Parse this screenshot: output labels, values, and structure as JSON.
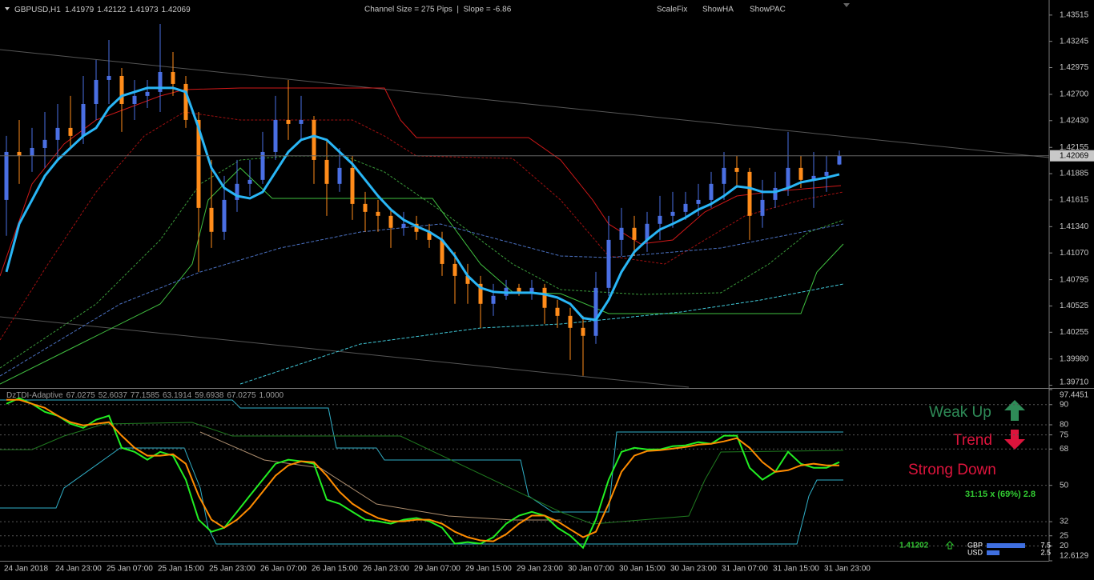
{
  "chart_data": [
    {
      "type": "candlestick",
      "title": "GBPUSD,H1",
      "last_bar": [
        1.41979,
        1.42122,
        1.41973,
        1.42069
      ],
      "annotation": "Channel Size = 275 Pips  |  Slope = -6.86",
      "buttons": [
        "ScaleFix",
        "ShowHA",
        "ShowPAC"
      ],
      "price_tag": 1.42069,
      "up_color": "#4a6fe3",
      "down_color": "#ff8c1a",
      "categories": [
        "24 Jan 2018",
        null,
        null,
        null,
        "24 Jan 23:00",
        null,
        null,
        null,
        "25 Jan 07:00",
        null,
        null,
        null,
        "25 Jan 15:00",
        null,
        null,
        null,
        "25 Jan 23:00",
        null,
        null,
        null,
        "26 Jan 07:00",
        null,
        null,
        null,
        "26 Jan 15:00",
        null,
        null,
        null,
        "26 Jan 23:00",
        null,
        null,
        null,
        "29 Jan 07:00",
        null,
        null,
        null,
        "29 Jan 15:00",
        null,
        null,
        null,
        "29 Jan 23:00",
        null,
        null,
        null,
        "30 Jan 07:00",
        null,
        null,
        null,
        "30 Jan 15:00",
        null,
        null,
        null,
        "30 Jan 23:00",
        null,
        null,
        null,
        "31 Jan 07:00",
        null,
        null,
        null,
        "31 Jan 15:00",
        null,
        null,
        null,
        "31 Jan 23:00",
        null
      ],
      "open": [
        1.41615,
        1.42108,
        1.42067,
        1.42149,
        1.42232,
        1.42355,
        1.42273,
        1.42601,
        1.42848,
        1.42889,
        1.42601,
        1.42684,
        1.42725,
        1.4293,
        1.42807,
        1.42437,
        1.41533,
        1.41287,
        1.41615,
        1.4178,
        1.41821,
        1.42108,
        1.42437,
        1.42396,
        1.42437,
        1.42026,
        1.4178,
        1.41944,
        1.41574,
        1.41492,
        1.41451,
        1.41328,
        1.41369,
        1.41287,
        1.41204,
        1.40957,
        1.40834,
        1.40752,
        1.40547,
        1.40629,
        1.40711,
        1.4067,
        1.40711,
        1.40506,
        1.40423,
        1.403,
        1.40218,
        1.40711,
        1.41204,
        1.41328,
        1.41204,
        1.41369,
        1.41451,
        1.41492,
        1.41574,
        1.41615,
        1.4178,
        1.41944,
        1.41903,
        1.41451,
        1.41615,
        1.41738,
        1.41944,
        1.41821,
        1.41862,
        1.41979
      ],
      "high": [
        1.42273,
        1.42437,
        1.42355,
        1.42519,
        1.42601,
        1.42684,
        1.42889,
        1.43053,
        1.43259,
        1.42971,
        1.42848,
        1.42848,
        1.43423,
        1.43136,
        1.42889,
        1.42519,
        1.42026,
        1.41862,
        1.42026,
        1.42026,
        1.42314,
        1.42684,
        1.42848,
        1.42684,
        1.42478,
        1.42232,
        1.42149,
        1.42067,
        1.41697,
        1.41615,
        1.41533,
        1.41492,
        1.41451,
        1.41369,
        1.41287,
        1.41081,
        1.40957,
        1.40834,
        1.40752,
        1.40793,
        1.40752,
        1.40793,
        1.40752,
        1.40588,
        1.40506,
        1.40423,
        1.40875,
        1.41451,
        1.41533,
        1.41451,
        1.41492,
        1.41656,
        1.41697,
        1.41697,
        1.4178,
        1.41903,
        1.42108,
        1.42067,
        1.41944,
        1.41821,
        1.41903,
        1.42314,
        1.42067,
        1.42108,
        1.42067,
        1.42122
      ],
      "low": [
        1.41246,
        1.4178,
        1.41903,
        1.41944,
        1.42026,
        1.42149,
        1.4219,
        1.42437,
        1.42601,
        1.42314,
        1.42437,
        1.4256,
        1.42519,
        1.42684,
        1.42355,
        1.40875,
        1.41122,
        1.41204,
        1.41492,
        1.41656,
        1.4178,
        1.42026,
        1.42232,
        1.42232,
        1.4178,
        1.41451,
        1.41697,
        1.4141,
        1.41287,
        1.41287,
        1.41122,
        1.41246,
        1.41204,
        1.41122,
        1.40834,
        1.40547,
        1.40547,
        1.403,
        1.40423,
        1.40588,
        1.40629,
        1.40588,
        1.40341,
        1.403,
        1.39971,
        1.39807,
        1.40135,
        1.40629,
        1.4104,
        1.4104,
        1.41081,
        1.41204,
        1.41328,
        1.4141,
        1.41451,
        1.41533,
        1.41615,
        1.41738,
        1.41204,
        1.41328,
        1.41533,
        1.41656,
        1.41738,
        1.41533,
        1.41697,
        1.41973
      ],
      "close": [
        1.42108,
        1.42067,
        1.42149,
        1.42232,
        1.42355,
        1.42273,
        1.42601,
        1.42848,
        1.42889,
        1.42601,
        1.42684,
        1.42725,
        1.4293,
        1.42807,
        1.42437,
        1.41533,
        1.41287,
        1.41615,
        1.4178,
        1.41821,
        1.42108,
        1.42437,
        1.42396,
        1.42437,
        1.42026,
        1.4178,
        1.41944,
        1.41574,
        1.41492,
        1.41451,
        1.41328,
        1.41369,
        1.41287,
        1.41204,
        1.40957,
        1.40834,
        1.40752,
        1.40547,
        1.40629,
        1.40711,
        1.4067,
        1.40711,
        1.40506,
        1.40423,
        1.403,
        1.40218,
        1.40711,
        1.41204,
        1.41328,
        1.41204,
        1.41369,
        1.41451,
        1.41492,
        1.41574,
        1.41615,
        1.4178,
        1.41944,
        1.41903,
        1.41451,
        1.41615,
        1.41738,
        1.41944,
        1.41821,
        1.41862,
        1.41903,
        1.42069
      ],
      "overlay": {
        "color": "#29b6f6",
        "values": [
          1.40875,
          1.41369,
          1.41615,
          1.41862,
          1.42026,
          1.42149,
          1.42273,
          1.42355,
          1.4256,
          1.42684,
          1.42725,
          1.42766,
          1.42766,
          1.42766,
          1.42725,
          1.42355,
          1.41944,
          1.41738,
          1.41656,
          1.41631,
          1.41697,
          1.41903,
          1.42108,
          1.42232,
          1.42273,
          1.42232,
          1.42108,
          1.41985,
          1.41821,
          1.41656,
          1.41516,
          1.4141,
          1.41344,
          1.41287,
          1.41204,
          1.4104,
          1.40834,
          1.40711,
          1.4067,
          1.40661,
          1.40661,
          1.40661,
          1.40645,
          1.40612,
          1.40547,
          1.404,
          1.40382,
          1.40588,
          1.40875,
          1.41081,
          1.41204,
          1.41311,
          1.41369,
          1.41434,
          1.41516,
          1.41574,
          1.41656,
          1.41755,
          1.41738,
          1.41697,
          1.41697,
          1.41738,
          1.41796,
          1.41821,
          1.41845,
          1.41878
        ]
      },
      "ylim": [
        1.3969,
        1.4367
      ],
      "yticks": [
        1.43515,
        1.43245,
        1.42975,
        {
          "value": 1.427,
          "label": "1.42700"
        },
        {
          "value": 1.4243,
          "label": "1.42430"
        },
        1.42155,
        1.41885,
        1.41615,
        {
          "value": 1.4134,
          "label": "1.41340"
        },
        {
          "value": 1.4107,
          "label": "1.41070"
        },
        1.40795,
        1.40525,
        1.40255,
        {
          "value": 1.3998,
          "label": "1.39980"
        },
        {
          "value": 1.3971,
          "label": "1.39710"
        }
      ],
      "grid": false
    },
    {
      "type": "line",
      "title": "DzTDI-Adaptive",
      "legend_values": [
        67.0275,
        52.6037,
        77.1585,
        63.1914,
        59.6938,
        67.0275,
        {
          "value": 1,
          "label": "1.0000"
        }
      ],
      "series": [
        {
          "color": "#22ee22",
          "values": [
            90.4,
            93.2,
            90.4,
            86.4,
            84.5,
            80.5,
            78.5,
            82.5,
            84.5,
            68.6,
            66.6,
            62.7,
            66.6,
            64.7,
            52.8,
            33.0,
            27.0,
            29.0,
            36.9,
            44.9,
            52.8,
            60.7,
            62.7,
            61.9,
            60.7,
            42.9,
            40.9,
            36.9,
            33.0,
            32.2,
            31.0,
            33.0,
            33.8,
            32.2,
            29.0,
            21.1,
            21.9,
            21.1,
            24.3,
            31.0,
            35.0,
            36.9,
            35.0,
            29.0,
            25.1,
            19.1,
            33.0,
            52.8,
            66.6,
            68.6,
            67.8,
            67.8,
            69.4,
            69.8,
            71.4,
            70.6,
            74.6,
            74.6,
            58.7,
            52.8,
            56.7,
            66.6,
            60.7,
            58.7,
            58.7,
            61.5
          ]
        },
        {
          "color": "#ff8c00",
          "values": [
            92.4,
            92.4,
            90.4,
            88.4,
            84.5,
            81.3,
            79.7,
            80.5,
            81.3,
            74.6,
            68.6,
            64.7,
            64.7,
            65.4,
            60.7,
            44.9,
            33.0,
            29.0,
            33.0,
            38.9,
            46.8,
            54.8,
            59.9,
            61.9,
            61.5,
            54.8,
            46.8,
            40.9,
            36.9,
            33.8,
            32.2,
            32.2,
            33.0,
            33.0,
            31.0,
            27.0,
            24.3,
            22.7,
            22.3,
            25.8,
            31.0,
            35.0,
            35.0,
            32.2,
            28.2,
            24.3,
            27.0,
            40.9,
            56.7,
            64.7,
            67.0,
            67.4,
            68.2,
            69.0,
            70.2,
            70.6,
            71.8,
            73.4,
            68.6,
            61.5,
            56.7,
            57.5,
            59.9,
            60.7,
            59.9,
            59.9
          ]
        }
      ],
      "ylim": [
        12.6129,
        97.4451
      ],
      "yticks": [
        97.4451,
        90,
        80,
        75,
        68,
        50,
        32,
        25,
        20,
        12.6129
      ],
      "grid": true,
      "signals": [
        "Weak Up",
        "Trend",
        "Strong Down"
      ],
      "timer": "31:15 x (69%) 2.8",
      "level": 1.41202,
      "strength": {
        "categories": [
          "GBP",
          "USD"
        ],
        "values": [
          7.5,
          2.5
        ],
        "color": "#3f6fe0"
      }
    }
  ]
}
